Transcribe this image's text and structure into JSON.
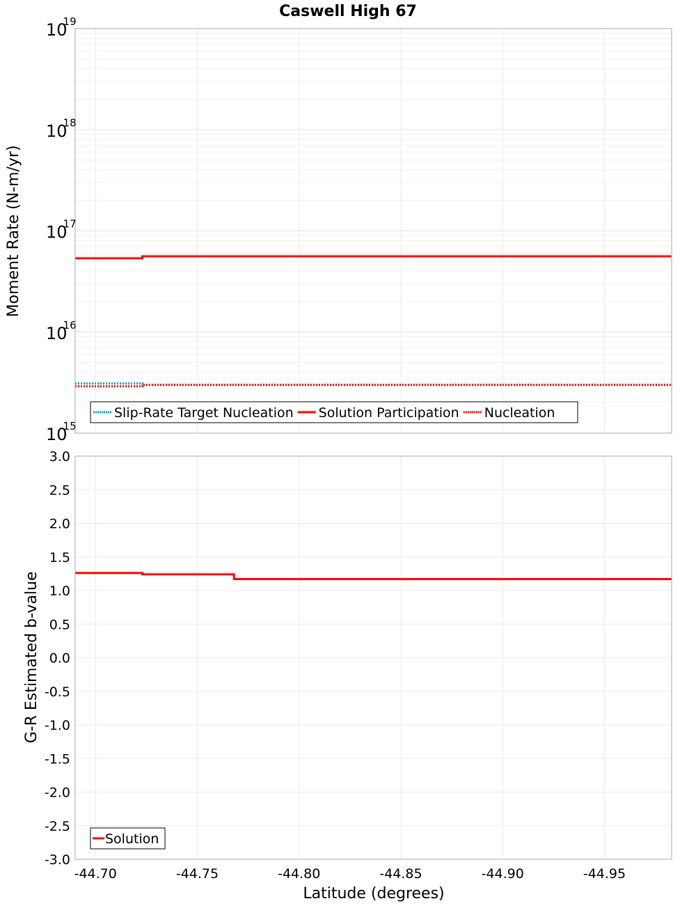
{
  "title": "Caswell High 67",
  "chart_data": [
    {
      "type": "line",
      "title": "Caswell High 67",
      "xlabel": "Latitude (degrees)",
      "ylabel": "Moment Rate (N-m/yr)",
      "yscale": "log",
      "ylim": [
        1000000000000000.0,
        1e+19
      ],
      "xlim": [
        -44.69,
        -44.983
      ],
      "grid": true,
      "legend_position": "bottom-left",
      "ytick_labels": [
        {
          "base": "10",
          "exp": "15"
        },
        {
          "base": "10",
          "exp": "16"
        },
        {
          "base": "10",
          "exp": "17"
        },
        {
          "base": "10",
          "exp": "18"
        },
        {
          "base": "10",
          "exp": "19"
        }
      ],
      "series": [
        {
          "name": "Slip-Rate Target Nucleation",
          "color": "#00a6b4",
          "style": "dotted",
          "x": [
            -44.69,
            -44.723,
            -44.723,
            -44.983
          ],
          "y": [
            3100000000000000.0,
            3100000000000000.0,
            3000000000000000.0,
            3000000000000000.0
          ]
        },
        {
          "name": "Solution Participation",
          "color": "#ff0000",
          "style": "solid",
          "x": [
            -44.69,
            -44.723,
            -44.723,
            -44.983
          ],
          "y": [
            5.35e+16,
            5.35e+16,
            5.6e+16,
            5.6e+16
          ]
        },
        {
          "name": "Nucleation",
          "color": "#ff0000",
          "style": "dotted",
          "x": [
            -44.69,
            -44.723,
            -44.723,
            -44.983
          ],
          "y": [
            2900000000000000.0,
            2900000000000000.0,
            3000000000000000.0,
            3000000000000000.0
          ]
        }
      ]
    },
    {
      "type": "line",
      "xlabel": "Latitude (degrees)",
      "ylabel": "G-R Estimated b-value",
      "ylim": [
        -3.0,
        3.0
      ],
      "xlim": [
        -44.69,
        -44.983
      ],
      "grid": true,
      "legend_position": "bottom-left",
      "ytick_labels": [
        "3.0",
        "2.5",
        "2.0",
        "1.5",
        "1.0",
        "0.5",
        "0.0",
        "-0.5",
        "-1.0",
        "-1.5",
        "-2.0",
        "-2.5",
        "-3.0"
      ],
      "xtick_labels": [
        "-44.70",
        "-44.75",
        "-44.80",
        "-44.85",
        "-44.90",
        "-44.95"
      ],
      "series": [
        {
          "name": "Solution",
          "color": "#ff0000",
          "style": "solid",
          "x": [
            -44.69,
            -44.723,
            -44.723,
            -44.768,
            -44.768,
            -44.983
          ],
          "y": [
            1.26,
            1.26,
            1.24,
            1.24,
            1.17,
            1.17
          ]
        }
      ]
    }
  ]
}
